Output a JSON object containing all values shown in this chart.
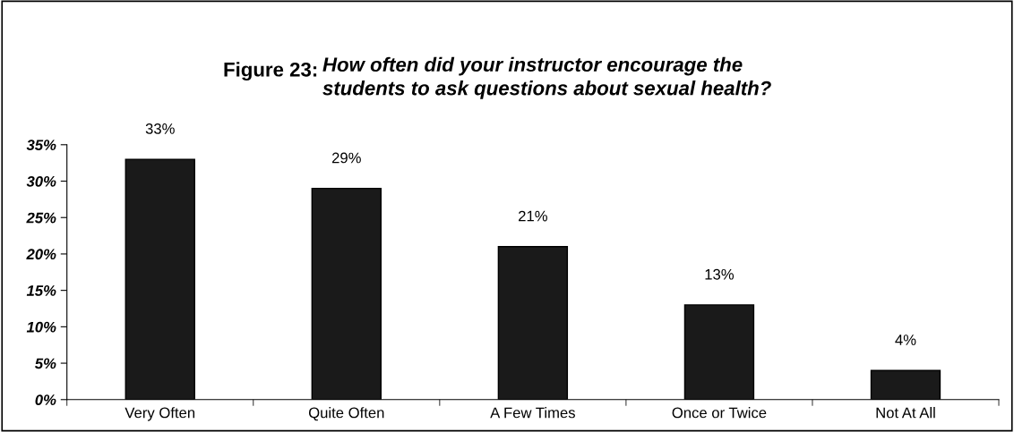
{
  "chart_data": {
    "type": "bar",
    "title": "Figure 23:",
    "subtitle": "How often did your instructor encourage the\nstudents to ask questions about sexual health?",
    "categories": [
      "Very Often",
      "Quite Often",
      "A Few Times",
      "Once or Twice",
      "Not At All"
    ],
    "values": [
      33,
      29,
      21,
      13,
      4
    ],
    "value_labels": [
      "33%",
      "29%",
      "21%",
      "13%",
      "4%"
    ],
    "color": "#1a1a1a",
    "ylim": [
      0,
      35
    ],
    "yticks": [
      {
        "value": 0,
        "label": "0%"
      },
      {
        "value": 5,
        "label": "5%"
      },
      {
        "value": 10,
        "label": "10%"
      },
      {
        "value": 15,
        "label": "15%"
      },
      {
        "value": 20,
        "label": "20%"
      },
      {
        "value": 25,
        "label": "25%"
      },
      {
        "value": 30,
        "label": "30%"
      },
      {
        "value": 35,
        "label": "35%"
      }
    ],
    "grid": false,
    "legend": false
  }
}
